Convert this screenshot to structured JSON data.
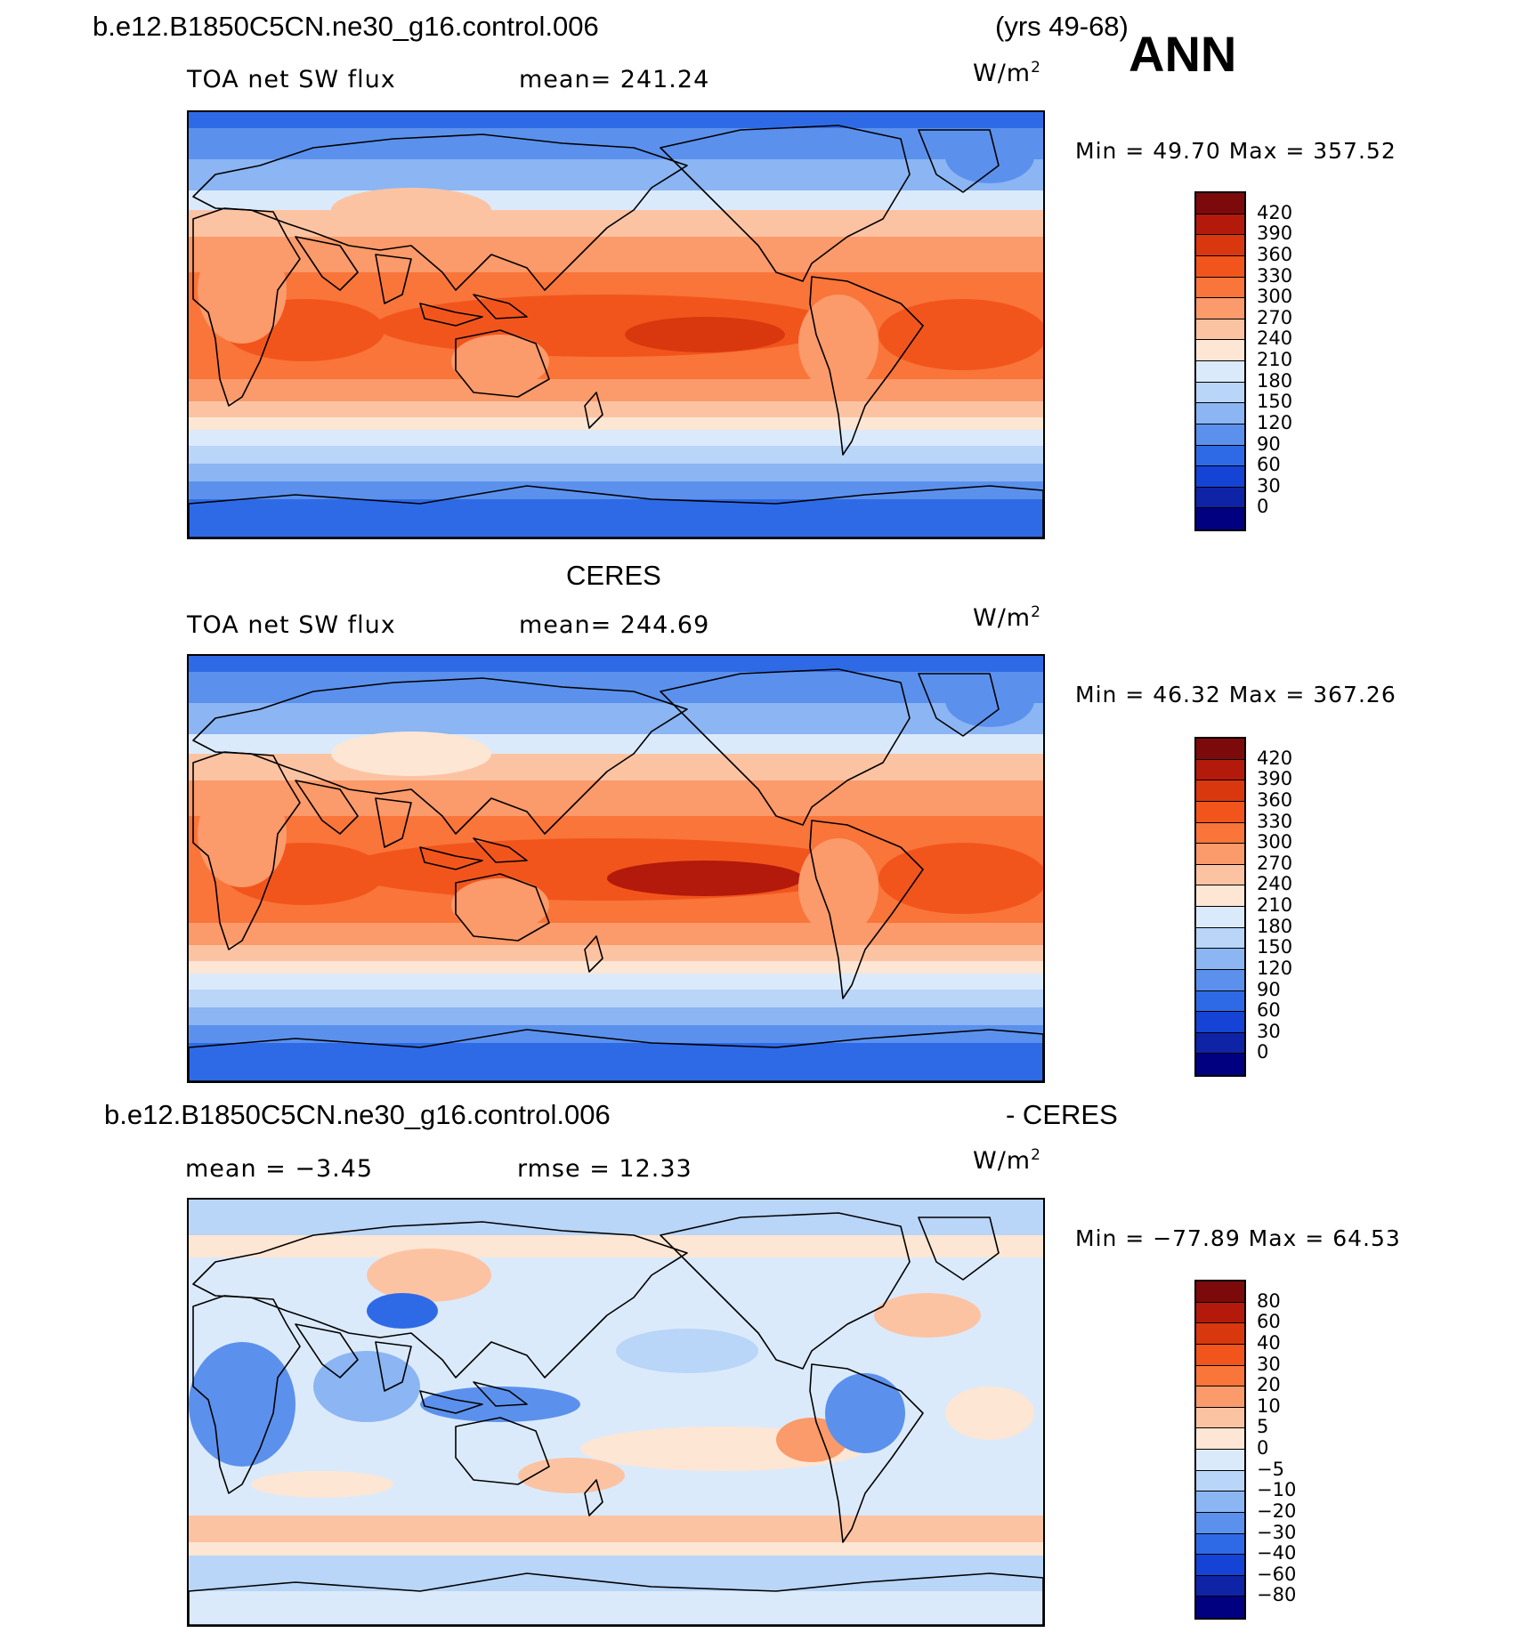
{
  "header": {
    "case_name": "b.e12.B1850C5CN.ne30_g16.control.006",
    "years": "(yrs 49-68)",
    "season": "ANN"
  },
  "panels": [
    {
      "id": "model",
      "title": "",
      "variable": "TOA net SW flux",
      "stat": "mean=  241.24",
      "unit_base": "W/m",
      "unit_exp": "2",
      "minmax": "Min =   49.70  Max =  357.52",
      "levels": [
        "420",
        "390",
        "360",
        "330",
        "300",
        "270",
        "240",
        "210",
        "180",
        "150",
        "120",
        "90",
        "60",
        "30",
        "0"
      ],
      "colors": [
        "#7d0a0a",
        "#b31a0b",
        "#d9380e",
        "#f2551c",
        "#f9753a",
        "#fb9a6a",
        "#fcc3a3",
        "#fde6d3",
        "#dbeafb",
        "#b9d5f8",
        "#8bb5f3",
        "#5b91ed",
        "#2f6ae6",
        "#1443d6",
        "#0f23a6",
        "#000080"
      ]
    },
    {
      "id": "obs",
      "title": "CERES",
      "variable": "TOA net SW flux",
      "stat": "mean=  244.69",
      "unit_base": "W/m",
      "unit_exp": "2",
      "minmax": "Min =   46.32  Max =  367.26",
      "levels": [
        "420",
        "390",
        "360",
        "330",
        "300",
        "270",
        "240",
        "210",
        "180",
        "150",
        "120",
        "90",
        "60",
        "30",
        "0"
      ],
      "colors": [
        "#7d0a0a",
        "#b31a0b",
        "#d9380e",
        "#f2551c",
        "#f9753a",
        "#fb9a6a",
        "#fcc3a3",
        "#fde6d3",
        "#dbeafb",
        "#b9d5f8",
        "#8bb5f3",
        "#5b91ed",
        "#2f6ae6",
        "#1443d6",
        "#0f23a6",
        "#000080"
      ]
    },
    {
      "id": "diff",
      "title_left": "b.e12.B1850C5CN.ne30_g16.control.006",
      "title_right": "- CERES",
      "variable": "mean =   −3.45",
      "stat": "rmse =   12.33",
      "unit_base": "W/m",
      "unit_exp": "2",
      "minmax": "Min = −77.89  Max =   64.53",
      "levels": [
        "80",
        "60",
        "40",
        "30",
        "20",
        "10",
        "5",
        "0",
        "−5",
        "−10",
        "−20",
        "−30",
        "−40",
        "−60",
        "−80"
      ],
      "colors": [
        "#7d0a0a",
        "#b31a0b",
        "#d9380e",
        "#f2551c",
        "#f9753a",
        "#fb9a6a",
        "#fcc3a3",
        "#fde6d3",
        "#dbeafb",
        "#b9d5f8",
        "#8bb5f3",
        "#5b91ed",
        "#2f6ae6",
        "#1443d6",
        "#0f23a6",
        "#000080"
      ]
    }
  ],
  "chart_data": [
    {
      "type": "heatmap",
      "title": "TOA net SW flux",
      "subtitle": "b.e12.B1850C5CN.ne30_g16.control.006 (yrs 49-68) ANN",
      "mean": 241.24,
      "min": 49.7,
      "max": 357.52,
      "units": "W/m2",
      "contour_levels": [
        0,
        30,
        60,
        90,
        120,
        150,
        180,
        210,
        240,
        270,
        300,
        330,
        360,
        390,
        420
      ]
    },
    {
      "type": "heatmap",
      "title": "TOA net SW flux",
      "subtitle": "CERES",
      "mean": 244.69,
      "min": 46.32,
      "max": 367.26,
      "units": "W/m2",
      "contour_levels": [
        0,
        30,
        60,
        90,
        120,
        150,
        180,
        210,
        240,
        270,
        300,
        330,
        360,
        390,
        420
      ]
    },
    {
      "type": "heatmap",
      "subtitle": "b.e12.B1850C5CN.ne30_g16.control.006 - CERES",
      "mean": -3.45,
      "rmse": 12.33,
      "min": -77.89,
      "max": 64.53,
      "units": "W/m2",
      "contour_levels": [
        -80,
        -60,
        -40,
        -30,
        -20,
        -10,
        -5,
        0,
        5,
        10,
        20,
        30,
        40,
        60,
        80
      ]
    }
  ]
}
